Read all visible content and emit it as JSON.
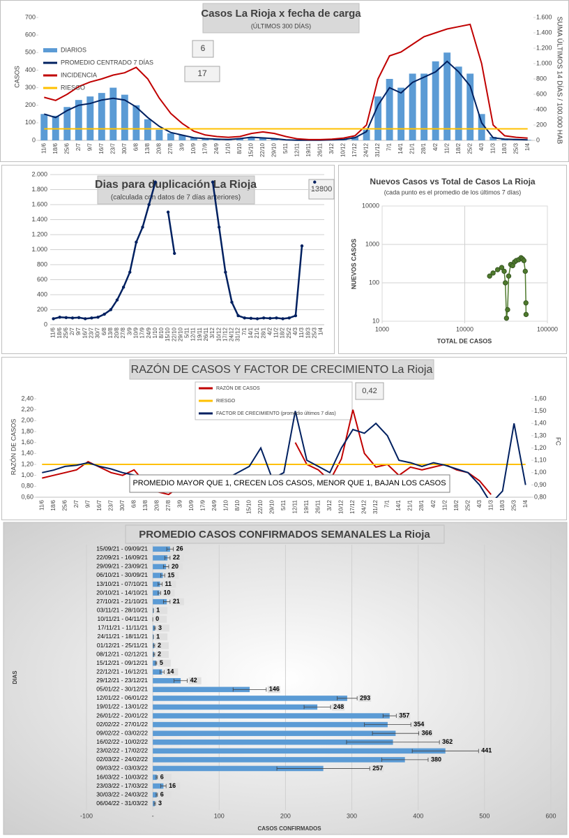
{
  "chart_data": [
    {
      "type": "line",
      "title": "Casos  La Rioja x fecha de carga",
      "subtitle": "(ÚLTIMOS 300 DÍAS)",
      "y_label": "CASOS",
      "y2_label": "SUMA  ÚLTIMOS 14 DÍAS / 100.000 HAB",
      "annotations": [
        "6",
        "17"
      ],
      "categories": [
        "11/6",
        "18/6",
        "25/6",
        "2/7",
        "9/7",
        "16/7",
        "23/7",
        "30/7",
        "6/8",
        "13/8",
        "20/8",
        "27/8",
        "3/9",
        "10/9",
        "17/9",
        "24/9",
        "1/10",
        "8/10",
        "15/10",
        "22/10",
        "29/10",
        "5/11",
        "12/11",
        "19/11",
        "26/11",
        "3/12",
        "10/12",
        "17/12",
        "24/12",
        "31/12",
        "7/1",
        "14/1",
        "21/1",
        "28/1",
        "4/2",
        "11/2",
        "18/2",
        "25/2",
        "4/3",
        "11/3",
        "18/3",
        "25/3",
        "1/4"
      ],
      "series": [
        {
          "name": "DIARIOS",
          "type": "bar",
          "color": "#5b9bd5",
          "values": [
            150,
            140,
            190,
            230,
            250,
            270,
            300,
            260,
            200,
            120,
            60,
            40,
            30,
            15,
            10,
            8,
            5,
            10,
            20,
            15,
            10,
            5,
            2,
            1,
            1,
            2,
            5,
            20,
            60,
            250,
            350,
            300,
            380,
            380,
            450,
            500,
            420,
            380,
            150,
            20,
            8,
            5,
            3
          ]
        },
        {
          "name": "PROMEDIO CENTRADO 7 DÍAS",
          "type": "line",
          "color": "#002060",
          "values": [
            150,
            130,
            170,
            200,
            210,
            230,
            240,
            230,
            190,
            130,
            80,
            45,
            30,
            15,
            10,
            7,
            5,
            10,
            18,
            14,
            10,
            3,
            1,
            1,
            1,
            3,
            5,
            15,
            50,
            200,
            300,
            270,
            330,
            360,
            390,
            450,
            390,
            310,
            100,
            15,
            7,
            5,
            3
          ]
        },
        {
          "name": "INCIDENCIA",
          "type": "line",
          "axis": "y2",
          "color": "#c00000",
          "values": [
            560,
            520,
            600,
            700,
            760,
            800,
            850,
            880,
            950,
            800,
            550,
            350,
            220,
            120,
            70,
            50,
            40,
            50,
            90,
            110,
            90,
            50,
            20,
            10,
            10,
            15,
            30,
            60,
            200,
            800,
            1100,
            1150,
            1250,
            1350,
            1400,
            1450,
            1480,
            1510,
            1000,
            200,
            60,
            40,
            30
          ]
        },
        {
          "name": "RIESGO",
          "type": "line",
          "axis": "y2",
          "color": "#ffc000",
          "values": [
            150,
            150,
            150,
            150,
            150,
            150,
            150,
            150,
            150,
            150,
            150,
            150,
            150,
            150,
            150,
            150,
            150,
            150,
            150,
            150,
            150,
            150,
            150,
            150,
            150,
            150,
            150,
            150,
            150,
            150,
            150,
            150,
            150,
            150,
            150,
            150,
            150,
            150,
            150,
            150,
            150,
            150,
            150
          ]
        }
      ],
      "ylim": [
        0,
        700
      ],
      "yticks": [
        0,
        100,
        200,
        300,
        400,
        500,
        600,
        700
      ],
      "y2lim": [
        0,
        1600
      ],
      "y2ticks": [
        0,
        200,
        400,
        600,
        800,
        {
          "value": 1000,
          "label": "1.000"
        },
        {
          "value": 1200,
          "label": "1.200"
        },
        {
          "value": 1400,
          "label": "1.400"
        },
        {
          "value": 1600,
          "label": "1.600"
        }
      ],
      "grid": false,
      "markers": false
    },
    {
      "type": "line",
      "title": "Dias para duplicación La Rioja",
      "subtitle": "(calculada con datos de 7 días anteriores)",
      "annotations": [
        "13800"
      ],
      "categories": [
        "11/6",
        "18/6",
        "25/6",
        "2/7",
        "9/7",
        "16/7",
        "23/7",
        "30/7",
        "6/8",
        "13/8",
        "20/8",
        "27/8",
        "3/9",
        "10/9",
        "17/9",
        "24/9",
        "1/10",
        "8/10",
        "15/10",
        "22/10",
        "29/10",
        "5/11",
        "12/11",
        "19/11",
        "26/11",
        "3/12",
        "10/12",
        "17/12",
        "24/12",
        "31/12",
        "7/1",
        "14/1",
        "21/1",
        "28/1",
        "4/2",
        "11/2",
        "18/2",
        "25/2",
        "4/3",
        "11/3",
        "18/3",
        "25/3",
        "1/4"
      ],
      "series": [
        {
          "type": "line",
          "color": "#002060",
          "values": [
            80,
            100,
            95,
            90,
            95,
            80,
            90,
            100,
            140,
            200,
            330,
            500,
            700,
            1100,
            1300,
            1600,
            1900,
            null,
            1500,
            950,
            null,
            null,
            null,
            null,
            null,
            1900,
            1300,
            700,
            300,
            120,
            90,
            85,
            80,
            90,
            85,
            90,
            80,
            90,
            120,
            1050,
            null,
            1900,
            null
          ]
        }
      ],
      "ylim": [
        0,
        2000
      ],
      "yticks": [
        0,
        200,
        400,
        600,
        800,
        {
          "value": 1000,
          "label": "1.000"
        },
        {
          "value": 1200,
          "label": "1.200"
        },
        {
          "value": 1400,
          "label": "1.400"
        },
        {
          "value": 1600,
          "label": "1.600"
        },
        {
          "value": 1800,
          "label": "1.800"
        },
        {
          "value": 2000,
          "label": "2.000"
        }
      ],
      "grid": true,
      "markers": true
    },
    {
      "type": "scatter",
      "title": "Nuevos Casos vs Total de Casos La Rioja",
      "subtitle": "(cada punto es el promedio de los últimos 7 días)",
      "x_label": "TOTAL DE CASOS",
      "y_label": "NUEVOS CASOS",
      "color": "#4e7a2c",
      "x": [
        20000,
        22000,
        25000,
        28000,
        30000,
        31000,
        32000,
        33000,
        34000,
        36000,
        38000,
        40000,
        42000,
        45000,
        48000,
        50000,
        52000,
        54000,
        55000,
        55200
      ],
      "values": [
        150,
        180,
        220,
        250,
        200,
        100,
        12,
        20,
        150,
        300,
        280,
        350,
        380,
        400,
        450,
        420,
        380,
        200,
        30,
        15
      ],
      "xlim": [
        1000,
        100000
      ],
      "xticks": [
        1000,
        10000,
        100000
      ],
      "ylim": [
        10,
        10000
      ],
      "yticks": [
        10,
        100,
        1000,
        10000
      ],
      "xlog": true,
      "ylog": true,
      "grid": true
    },
    {
      "type": "line",
      "title": "RAZÓN DE CASOS Y FACTOR DE CRECIMIENTO La Rioja",
      "y_label": "RAZÓN DE CASOS",
      "y2_label": "FC",
      "annotations": [
        "0,42",
        "PROMEDIO MAYOR QUE 1, CRECEN LOS CASOS, MENOR QUE 1, BAJAN LOS CASOS"
      ],
      "categories": [
        "11/6",
        "18/6",
        "25/6",
        "2/7",
        "9/7",
        "16/7",
        "23/7",
        "30/7",
        "6/8",
        "13/8",
        "20/8",
        "27/8",
        "3/9",
        "10/9",
        "17/9",
        "24/9",
        "1/10",
        "8/10",
        "15/10",
        "22/10",
        "29/10",
        "5/11",
        "12/11",
        "19/11",
        "26/11",
        "3/12",
        "10/12",
        "17/12",
        "24/12",
        "31/12",
        "7/1",
        "14/1",
        "21/1",
        "28/1",
        "4/2",
        "11/2",
        "18/2",
        "25/2",
        "4/3",
        "11/3",
        "18/3",
        "25/3",
        "1/4"
      ],
      "series": [
        {
          "name": "RAZÓN DE CASOS",
          "type": "line",
          "color": "#c00000",
          "values": [
            0.95,
            1.0,
            1.05,
            1.1,
            1.25,
            1.15,
            1.05,
            1.0,
            1.1,
            0.85,
            0.7,
            0.65,
            0.8,
            0.9,
            0.85,
            0.75,
            0.8,
            0.9,
            1.0,
            0.8,
            0.7,
            null,
            1.6,
            1.2,
            1.1,
            0.9,
            1.3,
            2.2,
            1.4,
            1.15,
            1.2,
            1.0,
            1.15,
            1.1,
            1.15,
            1.2,
            1.1,
            1.05,
            0.9,
            0.65,
            null,
            null,
            1.05
          ]
        },
        {
          "name": "RIESGO",
          "type": "line",
          "color": "#ffc000",
          "values": [
            1.2,
            1.2,
            1.2,
            1.2,
            1.2,
            1.2,
            1.2,
            1.2,
            1.2,
            1.2,
            1.2,
            1.2,
            1.2,
            1.2,
            1.2,
            1.2,
            1.2,
            1.2,
            1.2,
            1.2,
            1.2,
            1.2,
            1.2,
            1.2,
            1.2,
            1.2,
            1.2,
            1.2,
            1.2,
            1.2,
            1.2,
            1.2,
            1.2,
            1.2,
            1.2,
            1.2,
            1.2,
            1.2,
            1.2,
            1.2,
            1.2,
            1.2,
            1.2
          ]
        },
        {
          "name": "FACTOR DE CRECIMIENTO (promedio últimos 7 días)",
          "type": "line",
          "axis": "y2",
          "color": "#002060",
          "values": [
            1.0,
            1.02,
            1.05,
            1.06,
            1.08,
            1.05,
            1.03,
            1.0,
            0.98,
            0.93,
            0.9,
            0.88,
            0.92,
            0.95,
            0.94,
            0.9,
            0.95,
            1.0,
            1.05,
            1.2,
            0.95,
            1.0,
            1.5,
            1.1,
            1.05,
            1.0,
            1.2,
            1.35,
            1.32,
            1.4,
            1.3,
            1.1,
            1.08,
            1.05,
            1.08,
            1.06,
            1.03,
            1.0,
            0.9,
            0.75,
            0.85,
            1.4,
            0.9
          ]
        }
      ],
      "ylim": [
        0.6,
        2.4
      ],
      "yticks": [
        {
          "value": 0.6,
          "label": "0,60"
        },
        {
          "value": 0.8,
          "label": "0,80"
        },
        {
          "value": 1.0,
          "label": "1,00"
        },
        {
          "value": 1.2,
          "label": "1,20"
        },
        {
          "value": 1.4,
          "label": "1,40"
        },
        {
          "value": 1.6,
          "label": "1,60"
        },
        {
          "value": 1.8,
          "label": "1,80"
        },
        {
          "value": 2.0,
          "label": "2,00"
        },
        {
          "value": 2.2,
          "label": "2,20"
        },
        {
          "value": 2.4,
          "label": "2,40"
        }
      ],
      "y2lim": [
        0.8,
        1.6
      ],
      "y2ticks": [
        {
          "value": 0.8,
          "label": "0,80"
        },
        {
          "value": 0.9,
          "label": "0,90"
        },
        {
          "value": 1.0,
          "label": "1,00"
        },
        {
          "value": 1.1,
          "label": "1,10"
        },
        {
          "value": 1.2,
          "label": "1,20"
        },
        {
          "value": 1.3,
          "label": "1,30"
        },
        {
          "value": 1.4,
          "label": "1,40"
        },
        {
          "value": 1.5,
          "label": "1,50"
        },
        {
          "value": 1.6,
          "label": "1,60"
        }
      ],
      "grid": false,
      "markers": false
    },
    {
      "type": "bar",
      "orientation": "horizontal",
      "title": "PROMEDIO CASOS CONFIRMADOS SEMANALES La Rioja",
      "x_label": "CASOS CONFIRMADOS",
      "y_label": "DIAS",
      "color": "#5b9bd5",
      "categories": [
        "15/09/21 - 09/09/21",
        "22/09/21 - 16/09/21",
        "29/09/21 - 23/09/21",
        "06/10/21 - 30/09/21",
        "13/10/21 - 07/10/21",
        "20/10/21 - 14/10/21",
        "27/10/21 - 21/10/21",
        "03/11/21 - 28/10/21",
        "10/11/21 - 04/11/21",
        "17/11/21 - 11/11/21",
        "24/11/21 - 18/11/21",
        "01/12/21 - 25/11/21",
        "08/12/21 - 02/12/21",
        "15/12/21 - 09/12/21",
        "22/12/21 - 16/12/21",
        "29/12/21 - 23/12/21",
        "05/01/22 - 30/12/21",
        "12/01/22 - 06/01/22",
        "19/01/22 - 13/01/22",
        "26/01/22 - 20/01/22",
        "02/02/22 - 27/01/22",
        "09/02/22 - 03/02/22",
        "16/02/22 - 10/02/22",
        "23/02/22 - 17/02/22",
        "02/03/22 - 24/02/22",
        "09/03/22 - 03/03/22",
        "16/03/22 - 10/03/22",
        "23/03/22 - 17/03/22",
        "30/03/22 - 24/03/22",
        "06/04/22 - 31/03/22"
      ],
      "values": [
        26,
        22,
        20,
        15,
        11,
        10,
        21,
        1,
        0,
        3,
        1,
        2,
        2,
        5,
        14,
        42,
        146,
        293,
        248,
        357,
        354,
        366,
        362,
        441,
        380,
        257,
        6,
        16,
        6,
        3
      ],
      "errors": [
        5,
        4,
        4,
        3,
        3,
        2,
        5,
        0,
        0,
        1,
        0,
        1,
        1,
        1,
        3,
        10,
        25,
        15,
        20,
        10,
        35,
        35,
        70,
        50,
        35,
        70,
        1,
        4,
        1,
        1
      ],
      "xlim": [
        -100,
        600
      ],
      "xticks": [
        -100,
        {
          "value": 0,
          "label": "-"
        },
        100,
        200,
        300,
        400,
        500,
        600
      ],
      "grid": true
    }
  ]
}
